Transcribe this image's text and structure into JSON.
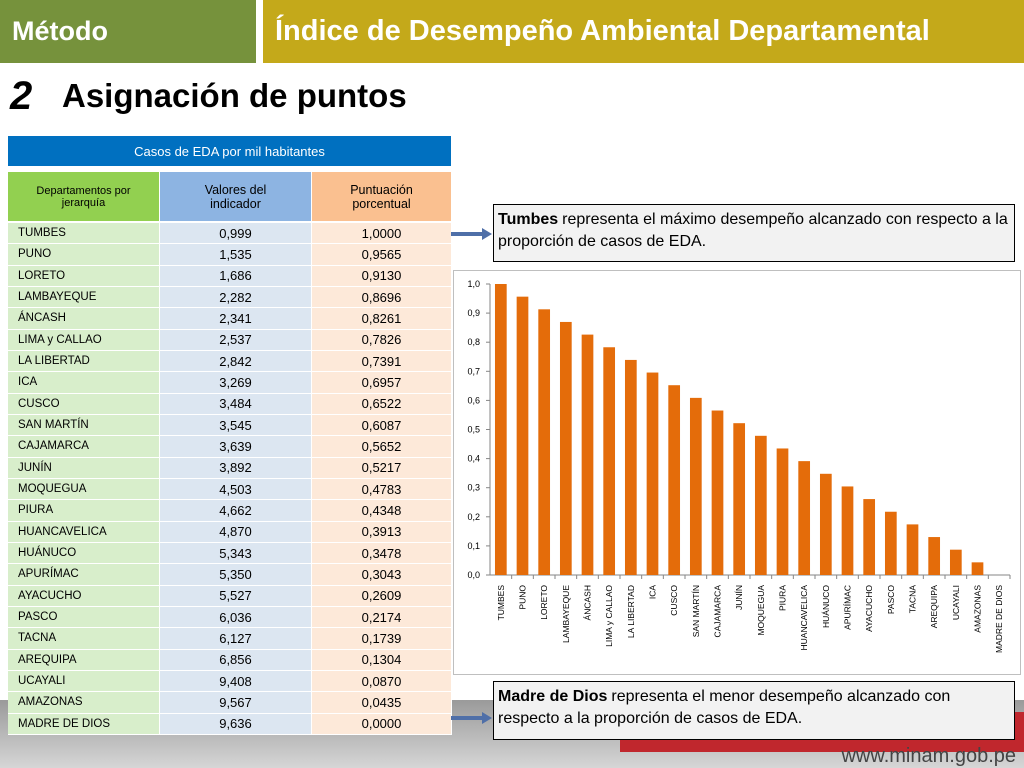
{
  "header": {
    "section": "Método",
    "title": "Índice de Desempeño Ambiental Departamental"
  },
  "step": {
    "number": "2",
    "title": "Asignación de puntos"
  },
  "table": {
    "title": "Casos de EDA por mil habitantes",
    "columns": [
      "Departamentos por jerarquía",
      "Valores del indicador",
      "Puntuación porcentual"
    ],
    "rows": [
      [
        "TUMBES",
        "0,999",
        "1,0000"
      ],
      [
        "PUNO",
        "1,535",
        "0,9565"
      ],
      [
        "LORETO",
        "1,686",
        "0,9130"
      ],
      [
        "LAMBAYEQUE",
        "2,282",
        "0,8696"
      ],
      [
        "ÁNCASH",
        "2,341",
        "0,8261"
      ],
      [
        "LIMA y CALLAO",
        "2,537",
        "0,7826"
      ],
      [
        "LA LIBERTAD",
        "2,842",
        "0,7391"
      ],
      [
        "ICA",
        "3,269",
        "0,6957"
      ],
      [
        "CUSCO",
        "3,484",
        "0,6522"
      ],
      [
        "SAN MARTÍN",
        "3,545",
        "0,6087"
      ],
      [
        "CAJAMARCA",
        "3,639",
        "0,5652"
      ],
      [
        "JUNÍN",
        "3,892",
        "0,5217"
      ],
      [
        "MOQUEGUA",
        "4,503",
        "0,4783"
      ],
      [
        "PIURA",
        "4,662",
        "0,4348"
      ],
      [
        "HUANCAVELICA",
        "4,870",
        "0,3913"
      ],
      [
        "HUÁNUCO",
        "5,343",
        "0,3478"
      ],
      [
        "APURÍMAC",
        "5,350",
        "0,3043"
      ],
      [
        "AYACUCHO",
        "5,527",
        "0,2609"
      ],
      [
        "PASCO",
        "6,036",
        "0,2174"
      ],
      [
        "TACNA",
        "6,127",
        "0,1739"
      ],
      [
        "AREQUIPA",
        "6,856",
        "0,1304"
      ],
      [
        "UCAYALI",
        "9,408",
        "0,0870"
      ],
      [
        "AMAZONAS",
        "9,567",
        "0,0435"
      ],
      [
        "MADRE DE DIOS",
        "9,636",
        "0,0000"
      ]
    ]
  },
  "callouts": [
    {
      "bold": "Tumbes",
      "text": "representa el máximo desempeño alcanzado con respecto a la proporción de casos de EDA."
    },
    {
      "bold": "Madre de Dios",
      "text": "representa el menor desempeño alcanzado con respecto a la proporción de casos de EDA."
    }
  ],
  "chart_data": {
    "type": "bar",
    "categories": [
      "TUMBES",
      "PUNO",
      "LORETO",
      "LAMBAYEQUE",
      "ÁNCASH",
      "LIMA y CALLAO",
      "LA LIBERTAD",
      "ICA",
      "CUSCO",
      "SAN MARTÍN",
      "CAJAMARCA",
      "JUNÍN",
      "MOQUEGUA",
      "PIURA",
      "HUANCAVELICA",
      "HUÁNUCO",
      "APURÍMAC",
      "AYACUCHO",
      "PASCO",
      "TACNA",
      "AREQUIPA",
      "UCAYALI",
      "AMAZONAS",
      "MADRE DE DIOS"
    ],
    "values": [
      1,
      0.9565,
      0.913,
      0.8696,
      0.8261,
      0.7826,
      0.7391,
      0.6957,
      0.6522,
      0.6087,
      0.5652,
      0.5217,
      0.4783,
      0.4348,
      0.3913,
      0.3478,
      0.3043,
      0.2609,
      0.2174,
      0.1739,
      0.1304,
      0.087,
      0.0435,
      0
    ],
    "color": "#e46c0a",
    "ylim": [
      0,
      1
    ],
    "yticks": [
      {
        "value": 0,
        "label": "0,0"
      },
      {
        "value": 0.1,
        "label": "0,1"
      },
      {
        "value": 0.2,
        "label": "0,2"
      },
      {
        "value": 0.3,
        "label": "0,3"
      },
      {
        "value": 0.4,
        "label": "0,4"
      },
      {
        "value": 0.5,
        "label": "0,5"
      },
      {
        "value": 0.6,
        "label": "0,6"
      },
      {
        "value": 0.7,
        "label": "0,7"
      },
      {
        "value": 0.8,
        "label": "0,8"
      },
      {
        "value": 0.9,
        "label": "0,9"
      },
      {
        "value": 1,
        "label": "1,0"
      }
    ],
    "grid": false
  },
  "footer": {
    "url": "www.minam.gob.pe"
  }
}
